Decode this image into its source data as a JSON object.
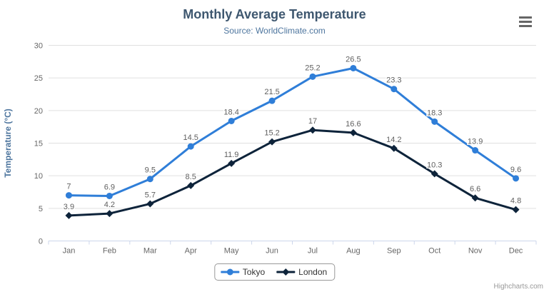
{
  "chart": {
    "credit": "Highcharts.com",
    "context_menu_tooltip": "Chart context menu"
  },
  "chart_data": {
    "type": "line",
    "title": "Monthly Average Temperature",
    "subtitle": "Source: WorldClimate.com",
    "categories": [
      "Jan",
      "Feb",
      "Mar",
      "Apr",
      "May",
      "Jun",
      "Jul",
      "Aug",
      "Sep",
      "Oct",
      "Nov",
      "Dec"
    ],
    "series": [
      {
        "name": "Tokyo",
        "color": "#2f7ed8",
        "marker": "circle",
        "values": [
          7,
          6.9,
          9.5,
          14.5,
          18.4,
          21.5,
          25.2,
          26.5,
          23.3,
          18.3,
          13.9,
          9.6
        ]
      },
      {
        "name": "London",
        "color": "#0d233a",
        "marker": "diamond",
        "values": [
          3.9,
          4.2,
          5.7,
          8.5,
          11.9,
          15.2,
          17,
          16.6,
          14.2,
          10.3,
          6.6,
          4.8
        ]
      }
    ],
    "xlabel": "",
    "ylabel": "Temperature (°C)",
    "ylim": [
      0,
      30
    ],
    "yticks": [
      0,
      5,
      10,
      15,
      20,
      25,
      30
    ],
    "grid": true,
    "data_labels": true,
    "legend_position": "bottom",
    "colors": {
      "title": "#3E576F",
      "subtitle": "#4d759e",
      "axis_title": "#4d759e",
      "tick_label": "#666666",
      "grid_line": "#e0e0e0",
      "axis_line": "#ccd6eb",
      "data_label": "#606060",
      "legend_text": "#333333",
      "legend_border": "#999999",
      "credit": "#999999",
      "menu_icon": "#666666"
    }
  }
}
